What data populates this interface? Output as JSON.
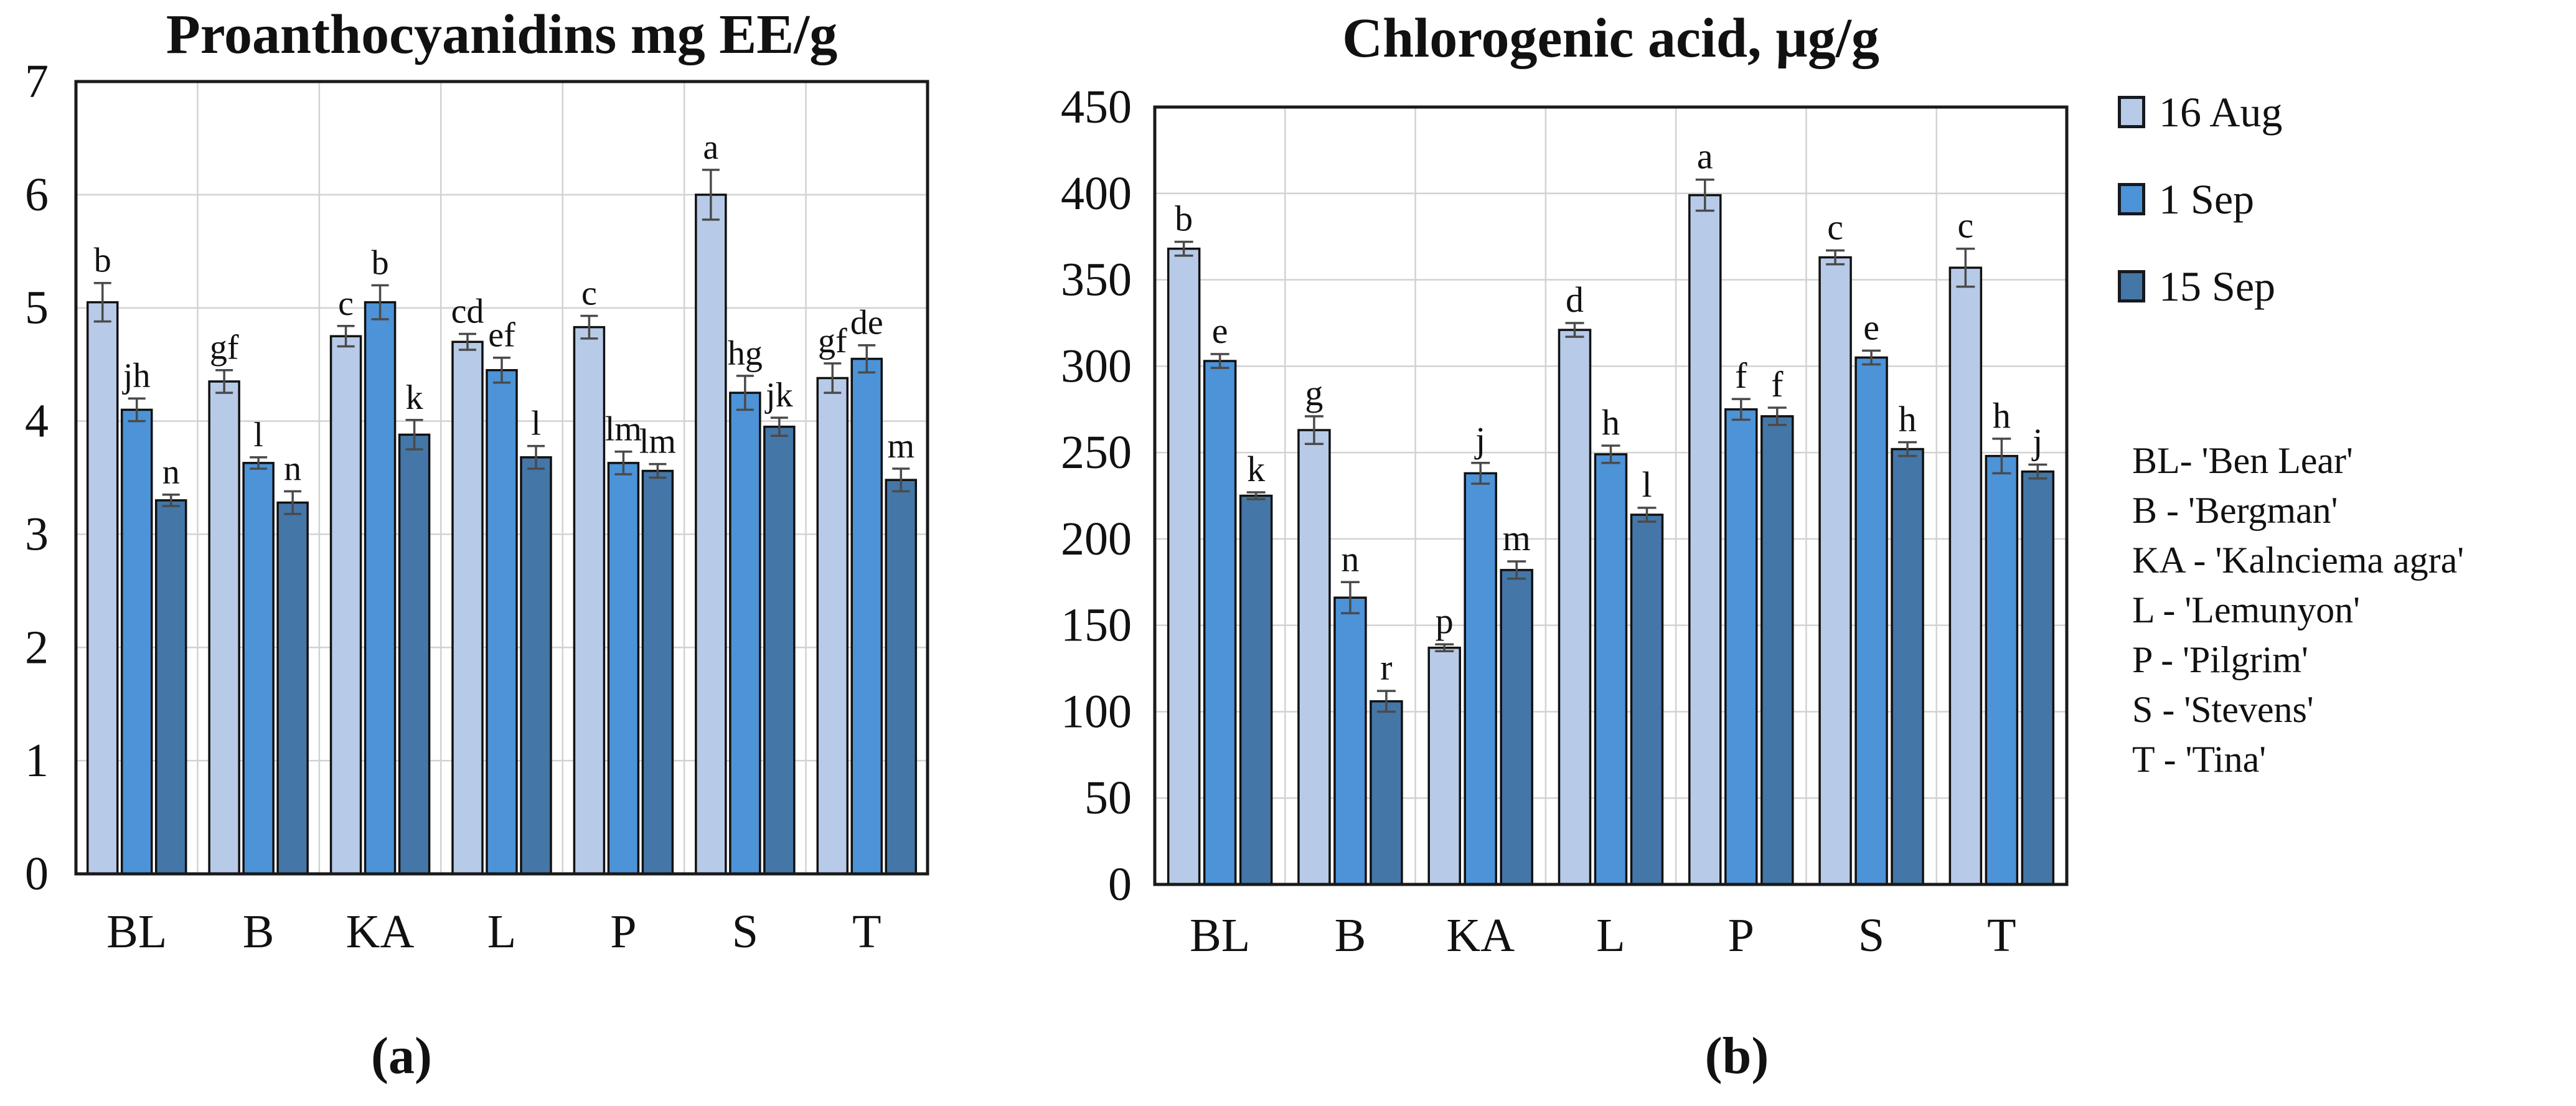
{
  "style": {
    "grid_color": "#d2d2d2",
    "frame_color": "#1a1a1a",
    "bar_border_color": "#111111",
    "error_bar_color": "#4a4a4a",
    "text_color": "#111111",
    "background": "#ffffff"
  },
  "legend": {
    "items": [
      {
        "label": "16 Aug",
        "color": "#b7cbe8"
      },
      {
        "label": "1 Sep",
        "color": "#4c93d8"
      },
      {
        "label": "15 Sep",
        "color": "#4477a8"
      }
    ]
  },
  "cultivar_key": {
    "lines": [
      "BL- 'Ben Lear'",
      "B - 'Bergman'",
      "KA - 'Kalnciema agra'",
      "L - 'Lemunyon'",
      "P -  'Pilgrim'",
      "S - 'Stevens'",
      "T - 'Tina'"
    ]
  },
  "panels": [
    {
      "label": "(a)"
    },
    {
      "label": "(b)"
    }
  ],
  "chart_data": [
    {
      "id": "proanthocyanidins",
      "type": "bar",
      "title": "Proanthocyanidins mg EE/g",
      "categories": [
        "BL",
        "B",
        "KA",
        "L",
        "P",
        "S",
        "T"
      ],
      "ylim": [
        0,
        7
      ],
      "yticks": [
        0,
        1,
        2,
        3,
        4,
        5,
        6,
        7
      ],
      "grid": true,
      "legend_position": "right-of-figure",
      "series": [
        {
          "name": "16 Aug",
          "color": "#b7cbe8",
          "values": [
            5.05,
            4.35,
            4.75,
            4.7,
            4.83,
            6.0,
            4.38
          ],
          "errors": [
            0.17,
            0.1,
            0.09,
            0.07,
            0.1,
            0.22,
            0.13
          ],
          "letters": [
            "b",
            "gf",
            "c",
            "cd",
            "c",
            "a",
            "gf"
          ]
        },
        {
          "name": "1 Sep",
          "color": "#4c93d8",
          "values": [
            4.1,
            3.63,
            5.05,
            4.45,
            3.63,
            4.25,
            4.55
          ],
          "errors": [
            0.1,
            0.05,
            0.15,
            0.11,
            0.1,
            0.15,
            0.12
          ],
          "letters": [
            "jh",
            "l",
            "b",
            "ef",
            "lm",
            "hg",
            "de"
          ]
        },
        {
          "name": "15 Sep",
          "color": "#4477a8",
          "values": [
            3.3,
            3.28,
            3.88,
            3.68,
            3.56,
            3.95,
            3.48
          ],
          "errors": [
            0.05,
            0.1,
            0.13,
            0.1,
            0.06,
            0.08,
            0.1
          ],
          "letters": [
            "n",
            "n",
            "k",
            "l",
            "lm",
            "jk",
            "m"
          ]
        }
      ]
    },
    {
      "id": "chlorogenic-acid",
      "type": "bar",
      "title": "Chlorogenic acid, µg/g",
      "categories": [
        "BL",
        "B",
        "KA",
        "L",
        "P",
        "S",
        "T"
      ],
      "ylim": [
        0,
        450
      ],
      "yticks": [
        0,
        50,
        100,
        150,
        200,
        250,
        300,
        350,
        400,
        450
      ],
      "grid": true,
      "legend_position": "right-of-figure",
      "series": [
        {
          "name": "16 Aug",
          "color": "#b7cbe8",
          "values": [
            368,
            263,
            137,
            321,
            399,
            363,
            357
          ],
          "errors": [
            4,
            8,
            2,
            4,
            9,
            4,
            11
          ],
          "letters": [
            "b",
            "g",
            "p",
            "d",
            "a",
            "c",
            "c"
          ]
        },
        {
          "name": "1 Sep",
          "color": "#4c93d8",
          "values": [
            303,
            166,
            238,
            249,
            275,
            305,
            248
          ],
          "errors": [
            4,
            9,
            6,
            5,
            6,
            4,
            10
          ],
          "letters": [
            "e",
            "n",
            "j",
            "h",
            "f",
            "e",
            "h"
          ]
        },
        {
          "name": "15 Sep",
          "color": "#4477a8",
          "values": [
            225,
            106,
            182,
            214,
            271,
            252,
            239
          ],
          "errors": [
            2,
            6,
            5,
            4,
            5,
            4,
            4
          ],
          "letters": [
            "k",
            "r",
            "m",
            "l",
            "f",
            "h",
            "j"
          ]
        }
      ]
    }
  ]
}
